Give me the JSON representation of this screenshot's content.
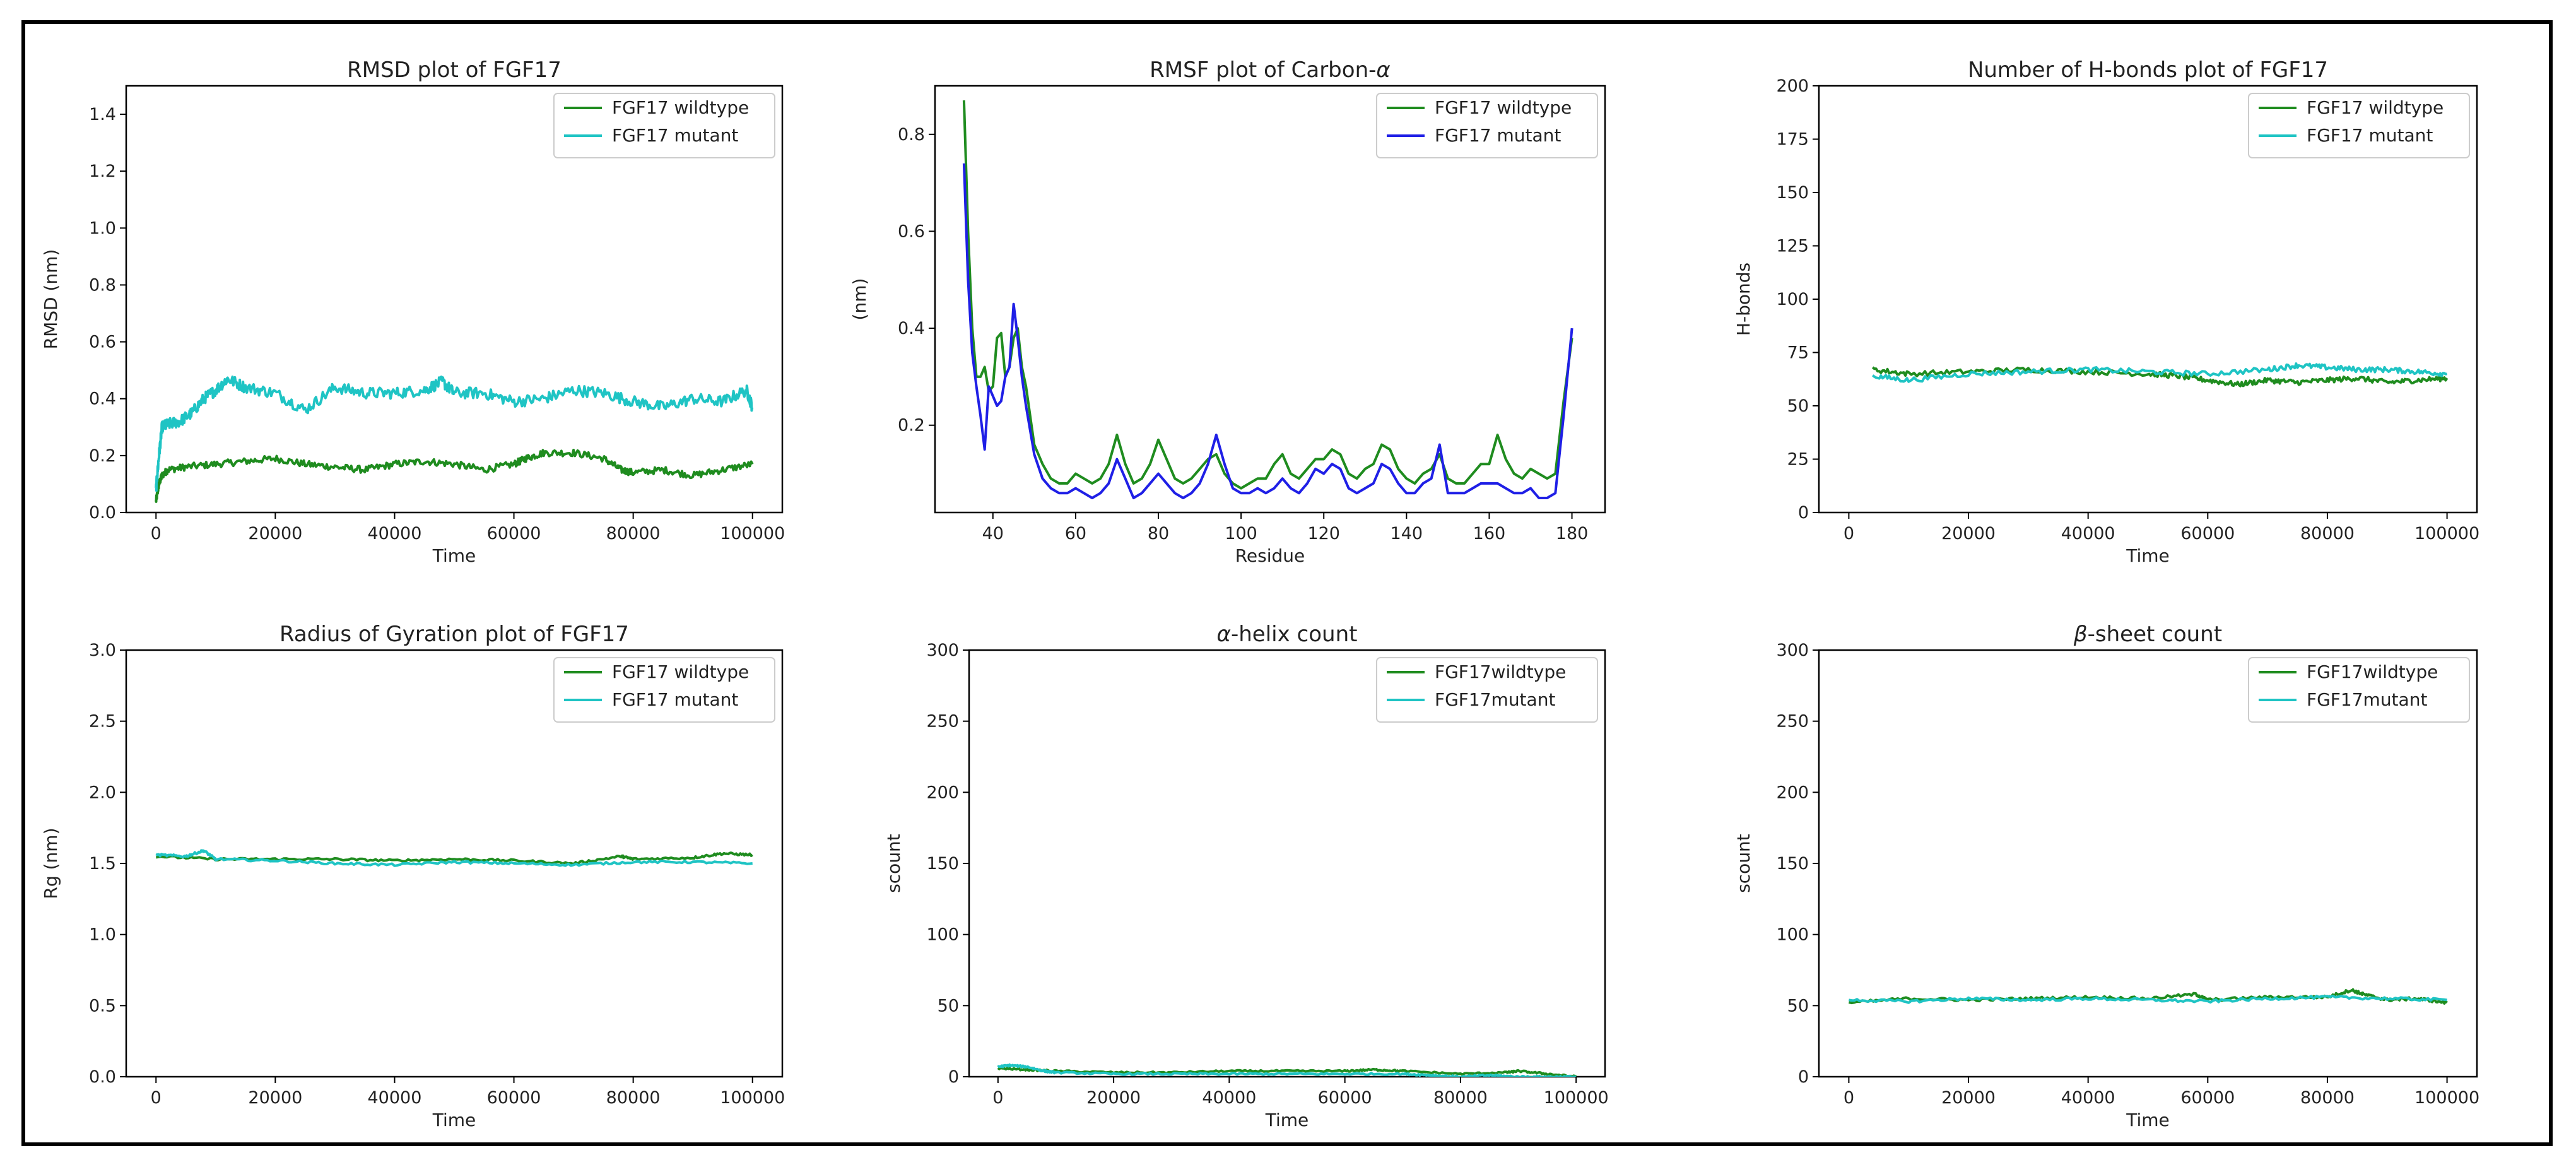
{
  "colors": {
    "green": "#1f8c1f",
    "cyan": "#1fc4c4",
    "blue": "#1f1fe6"
  },
  "chart_data": [
    {
      "type": "line",
      "title": "RMSD plot of FGF17",
      "xlabel": "Time",
      "ylabel": "RMSD (nm)",
      "xlim": [
        -5000,
        105000
      ],
      "ylim": [
        0,
        1.5
      ],
      "xticks": [
        0,
        20000,
        40000,
        60000,
        80000,
        100000
      ],
      "yticks": [
        0.0,
        0.2,
        0.4,
        0.6,
        0.8,
        1.0,
        1.2,
        1.4
      ],
      "ytick_labels": [
        "0.0",
        "0.2",
        "0.4",
        "0.6",
        "0.8",
        "1.0",
        "1.2",
        "1.4"
      ],
      "legend": "top-right",
      "series": [
        {
          "name": "FGF17 wildtype",
          "color": "#1f8c1f",
          "noise": 0.012,
          "x": [
            0,
            500,
            1000,
            2000,
            5000,
            10000,
            15000,
            20000,
            25000,
            30000,
            35000,
            40000,
            45000,
            50000,
            55000,
            60000,
            62000,
            65000,
            70000,
            75000,
            78000,
            80000,
            85000,
            90000,
            95000,
            100000
          ],
          "y": [
            0.04,
            0.1,
            0.13,
            0.15,
            0.16,
            0.17,
            0.18,
            0.19,
            0.17,
            0.16,
            0.15,
            0.17,
            0.18,
            0.17,
            0.15,
            0.17,
            0.19,
            0.21,
            0.21,
            0.19,
            0.15,
            0.14,
            0.15,
            0.13,
            0.15,
            0.17
          ]
        },
        {
          "name": "FGF17 mutant",
          "color": "#1fc4c4",
          "noise": 0.02,
          "x": [
            0,
            500,
            1000,
            2000,
            4000,
            6000,
            8000,
            10000,
            12000,
            15000,
            20000,
            25000,
            30000,
            35000,
            40000,
            45000,
            48000,
            50000,
            55000,
            60000,
            65000,
            70000,
            75000,
            80000,
            85000,
            90000,
            95000,
            99000,
            100000
          ],
          "y": [
            0.08,
            0.2,
            0.3,
            0.31,
            0.32,
            0.35,
            0.4,
            0.43,
            0.47,
            0.44,
            0.42,
            0.36,
            0.44,
            0.42,
            0.42,
            0.43,
            0.46,
            0.42,
            0.42,
            0.39,
            0.4,
            0.43,
            0.42,
            0.39,
            0.37,
            0.4,
            0.39,
            0.43,
            0.37
          ]
        }
      ]
    },
    {
      "type": "line",
      "title": "RMSF plot of Carbon-",
      "title_symbol": "α",
      "xlabel": "Residue",
      "ylabel": "(nm)",
      "xlim": [
        26,
        188
      ],
      "ylim": [
        0.02,
        0.9
      ],
      "xticks": [
        40,
        60,
        80,
        100,
        120,
        140,
        160,
        180
      ],
      "yticks": [
        0.2,
        0.4,
        0.6,
        0.8
      ],
      "ytick_labels": [
        "0.2",
        "0.4",
        "0.6",
        "0.8"
      ],
      "legend": "top-right",
      "series": [
        {
          "name": "FGF17 wildtype",
          "color": "#1f8c1f",
          "noise": 0,
          "x": [
            33,
            34,
            35,
            36,
            37,
            38,
            39,
            40,
            41,
            42,
            43,
            44,
            45,
            46,
            47,
            48,
            50,
            52,
            54,
            56,
            58,
            60,
            62,
            64,
            66,
            68,
            70,
            72,
            74,
            76,
            78,
            80,
            82,
            84,
            86,
            88,
            90,
            92,
            94,
            96,
            98,
            100,
            102,
            104,
            106,
            108,
            110,
            112,
            114,
            116,
            118,
            120,
            122,
            124,
            126,
            128,
            130,
            132,
            134,
            136,
            138,
            140,
            142,
            144,
            146,
            148,
            150,
            152,
            154,
            156,
            158,
            160,
            162,
            164,
            166,
            168,
            170,
            172,
            174,
            176,
            178,
            180
          ],
          "y": [
            0.87,
            0.6,
            0.4,
            0.3,
            0.3,
            0.32,
            0.27,
            0.28,
            0.38,
            0.39,
            0.3,
            0.32,
            0.38,
            0.4,
            0.32,
            0.28,
            0.16,
            0.12,
            0.09,
            0.08,
            0.08,
            0.1,
            0.09,
            0.08,
            0.09,
            0.12,
            0.18,
            0.12,
            0.08,
            0.09,
            0.12,
            0.17,
            0.13,
            0.09,
            0.08,
            0.09,
            0.11,
            0.13,
            0.14,
            0.1,
            0.08,
            0.07,
            0.08,
            0.09,
            0.09,
            0.12,
            0.14,
            0.1,
            0.09,
            0.11,
            0.13,
            0.13,
            0.15,
            0.14,
            0.1,
            0.09,
            0.11,
            0.12,
            0.16,
            0.15,
            0.11,
            0.09,
            0.08,
            0.1,
            0.11,
            0.14,
            0.09,
            0.08,
            0.08,
            0.1,
            0.12,
            0.12,
            0.18,
            0.13,
            0.1,
            0.09,
            0.11,
            0.1,
            0.09,
            0.1,
            0.25,
            0.38
          ]
        },
        {
          "name": "FGF17 mutant",
          "color": "#1f1fe6",
          "noise": 0,
          "x": [
            33,
            34,
            35,
            36,
            37,
            38,
            39,
            40,
            41,
            42,
            43,
            44,
            45,
            46,
            47,
            48,
            50,
            52,
            54,
            56,
            58,
            60,
            62,
            64,
            66,
            68,
            70,
            72,
            74,
            76,
            78,
            80,
            82,
            84,
            86,
            88,
            90,
            92,
            94,
            96,
            98,
            100,
            102,
            104,
            106,
            108,
            110,
            112,
            114,
            116,
            118,
            120,
            122,
            124,
            126,
            128,
            130,
            132,
            134,
            136,
            138,
            140,
            142,
            144,
            146,
            148,
            150,
            152,
            154,
            156,
            158,
            160,
            162,
            164,
            166,
            168,
            170,
            172,
            174,
            176,
            178,
            180
          ],
          "y": [
            0.74,
            0.5,
            0.35,
            0.28,
            0.22,
            0.15,
            0.28,
            0.26,
            0.24,
            0.25,
            0.3,
            0.32,
            0.45,
            0.38,
            0.3,
            0.24,
            0.14,
            0.09,
            0.07,
            0.06,
            0.06,
            0.07,
            0.06,
            0.05,
            0.06,
            0.08,
            0.13,
            0.09,
            0.05,
            0.06,
            0.08,
            0.1,
            0.08,
            0.06,
            0.05,
            0.06,
            0.08,
            0.12,
            0.18,
            0.12,
            0.07,
            0.06,
            0.06,
            0.07,
            0.06,
            0.07,
            0.09,
            0.07,
            0.06,
            0.08,
            0.11,
            0.1,
            0.12,
            0.11,
            0.07,
            0.06,
            0.07,
            0.08,
            0.12,
            0.11,
            0.08,
            0.06,
            0.06,
            0.08,
            0.09,
            0.16,
            0.06,
            0.06,
            0.06,
            0.07,
            0.08,
            0.08,
            0.08,
            0.07,
            0.06,
            0.06,
            0.07,
            0.05,
            0.05,
            0.06,
            0.22,
            0.4
          ]
        }
      ]
    },
    {
      "type": "line",
      "title": "Number of H-bonds plot of FGF17",
      "xlabel": "Time",
      "ylabel": "H-bonds",
      "xlim": [
        -5000,
        105000
      ],
      "ylim": [
        0,
        200
      ],
      "xticks": [
        0,
        20000,
        40000,
        60000,
        80000,
        100000
      ],
      "yticks": [
        0,
        25,
        50,
        75,
        100,
        125,
        150,
        175,
        200
      ],
      "ytick_labels": [
        "0",
        "25",
        "50",
        "75",
        "100",
        "125",
        "150",
        "175",
        "200"
      ],
      "legend": "top-right",
      "series": [
        {
          "name": "FGF17 wildtype",
          "color": "#1f8c1f",
          "noise": 1.2,
          "x": [
            4000,
            10000,
            20000,
            30000,
            40000,
            50000,
            55000,
            60000,
            65000,
            70000,
            75000,
            80000,
            85000,
            90000,
            95000,
            100000
          ],
          "y": [
            67,
            65,
            66,
            67,
            66,
            65,
            64,
            62,
            60,
            62,
            61,
            62,
            63,
            61,
            62,
            63
          ]
        },
        {
          "name": "FGF17 mutant",
          "color": "#1fc4c4",
          "noise": 1.2,
          "x": [
            4000,
            10000,
            20000,
            30000,
            40000,
            50000,
            60000,
            70000,
            75000,
            80000,
            85000,
            90000,
            95000,
            100000
          ],
          "y": [
            64,
            62,
            65,
            66,
            67,
            66,
            65,
            67,
            69,
            68,
            67,
            67,
            66,
            65
          ]
        }
      ]
    },
    {
      "type": "line",
      "title": "Radius of Gyration plot of FGF17",
      "xlabel": "Time",
      "ylabel": "Rg (nm)",
      "xlim": [
        -5000,
        105000
      ],
      "ylim": [
        0,
        3.0
      ],
      "xticks": [
        0,
        20000,
        40000,
        60000,
        80000,
        100000
      ],
      "yticks": [
        0.0,
        0.5,
        1.0,
        1.5,
        2.0,
        2.5,
        3.0
      ],
      "ytick_labels": [
        "0.0",
        "0.5",
        "1.0",
        "1.5",
        "2.0",
        "2.5",
        "3.0"
      ],
      "legend": "top-right",
      "series": [
        {
          "name": "FGF17 wildtype",
          "color": "#1f8c1f",
          "noise": 0.008,
          "x": [
            0,
            10000,
            20000,
            30000,
            40000,
            50000,
            60000,
            70000,
            78000,
            80000,
            90000,
            95000,
            100000
          ],
          "y": [
            1.55,
            1.53,
            1.53,
            1.53,
            1.52,
            1.53,
            1.52,
            1.5,
            1.55,
            1.53,
            1.54,
            1.57,
            1.56
          ]
        },
        {
          "name": "FGF17 mutant",
          "color": "#1fc4c4",
          "noise": 0.008,
          "x": [
            0,
            5000,
            8000,
            10000,
            20000,
            30000,
            40000,
            50000,
            60000,
            70000,
            80000,
            90000,
            100000
          ],
          "y": [
            1.56,
            1.55,
            1.59,
            1.53,
            1.52,
            1.5,
            1.49,
            1.51,
            1.5,
            1.49,
            1.51,
            1.51,
            1.5
          ]
        }
      ]
    },
    {
      "type": "line",
      "title": "-helix count",
      "title_symbol": "α",
      "xlabel": "Time",
      "ylabel": "scount",
      "xlim": [
        -5000,
        105000
      ],
      "ylim": [
        0,
        300
      ],
      "xticks": [
        0,
        20000,
        40000,
        60000,
        80000,
        100000
      ],
      "yticks": [
        0,
        50,
        100,
        150,
        200,
        250,
        300
      ],
      "ytick_labels": [
        "0",
        "50",
        "100",
        "150",
        "200",
        "250",
        "300"
      ],
      "legend": "top-right",
      "series": [
        {
          "name": "FGF17wildtype",
          "color": "#1f8c1f",
          "noise": 0.6,
          "x": [
            0,
            5000,
            10000,
            20000,
            30000,
            40000,
            50000,
            60000,
            65000,
            70000,
            80000,
            88000,
            90000,
            95000,
            100000
          ],
          "y": [
            6,
            5,
            4,
            3,
            3,
            4,
            4,
            4,
            5,
            4,
            2,
            3,
            4,
            2,
            0
          ]
        },
        {
          "name": "FGF17mutant",
          "color": "#1fc4c4",
          "noise": 0.6,
          "x": [
            0,
            2000,
            5000,
            8000,
            10000,
            20000,
            30000,
            40000,
            50000,
            60000,
            70000,
            75000,
            80000,
            85000,
            90000,
            95000,
            100000
          ],
          "y": [
            7,
            8,
            7,
            4,
            3,
            2,
            2,
            2,
            2,
            2,
            2,
            1,
            0,
            1,
            0,
            0,
            0
          ]
        }
      ]
    },
    {
      "type": "line",
      "title": "-sheet count",
      "title_symbol": "β",
      "xlabel": "Time",
      "ylabel": "scount",
      "xlim": [
        -5000,
        105000
      ],
      "ylim": [
        0,
        300
      ],
      "xticks": [
        0,
        20000,
        40000,
        60000,
        80000,
        100000
      ],
      "yticks": [
        0,
        50,
        100,
        150,
        200,
        250,
        300
      ],
      "ytick_labels": [
        "0",
        "50",
        "100",
        "150",
        "200",
        "250",
        "300"
      ],
      "legend": "top-right",
      "series": [
        {
          "name": "FGF17wildtype",
          "color": "#1f8c1f",
          "noise": 1.0,
          "x": [
            0,
            10000,
            20000,
            30000,
            40000,
            50000,
            58000,
            60000,
            70000,
            80000,
            84000,
            86000,
            90000,
            95000,
            100000
          ],
          "y": [
            52,
            55,
            54,
            55,
            56,
            55,
            58,
            54,
            56,
            56,
            61,
            58,
            54,
            55,
            52
          ]
        },
        {
          "name": "FGF17mutant",
          "color": "#1fc4c4",
          "noise": 1.0,
          "x": [
            0,
            10000,
            20000,
            30000,
            40000,
            50000,
            60000,
            70000,
            80000,
            90000,
            100000
          ],
          "y": [
            54,
            53,
            55,
            54,
            55,
            54,
            53,
            55,
            56,
            55,
            54
          ]
        }
      ]
    }
  ]
}
